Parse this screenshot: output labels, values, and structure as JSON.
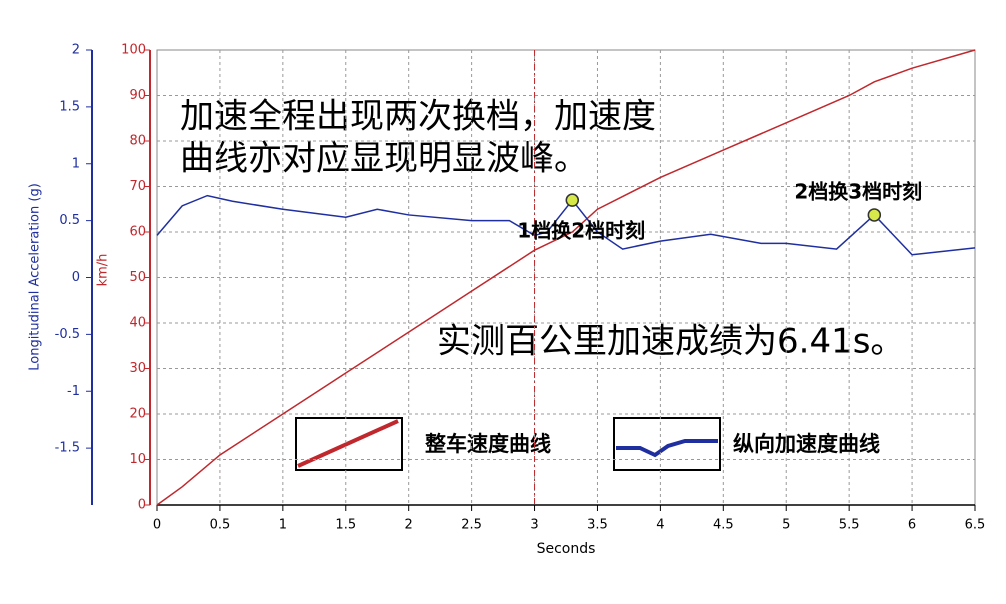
{
  "chart_data": {
    "type": "line",
    "notes": [
      "加速全程出现两次换档，加速度",
      "曲线亦对应显现明显波峰。"
    ],
    "result_note": "实测百公里加速成绩为6.41s。",
    "xlabel": "Seconds",
    "ylabel": "Longitudinal Acceleration (g)",
    "y2label": "km/h",
    "xlim": [
      0,
      6.5
    ],
    "xticks": [
      0,
      0.5,
      1,
      1.5,
      2,
      2.5,
      3,
      3.5,
      4,
      4.5,
      5,
      5.5,
      6,
      6.5
    ],
    "ylim": [
      -2,
      2
    ],
    "yticks": [
      -1.5,
      -1,
      -0.5,
      0,
      0.5,
      1,
      1.5,
      2
    ],
    "y2lim": [
      0,
      100
    ],
    "y2ticks": [
      0,
      10,
      20,
      30,
      40,
      50,
      60,
      70,
      80,
      90,
      100
    ],
    "grid": true,
    "vline": 3,
    "series": [
      {
        "name": "整车速度曲线",
        "color": "#c0282d",
        "axis": "y2",
        "x": [
          0,
          0.2,
          0.5,
          1,
          1.5,
          2,
          2.5,
          3,
          3.3,
          3.5,
          4,
          4.5,
          5,
          5.5,
          5.7,
          6,
          6.5
        ],
        "values": [
          0,
          4,
          11,
          20,
          29,
          38,
          47,
          56,
          60,
          65,
          72,
          78,
          84,
          90,
          93,
          96,
          100
        ]
      },
      {
        "name": "纵向加速度曲线",
        "color": "#1f2fa0",
        "x": [
          0,
          0.2,
          0.4,
          0.6,
          1,
          1.5,
          1.75,
          2,
          2.5,
          2.8,
          3,
          3.1,
          3.3,
          3.5,
          3.7,
          4,
          4.4,
          4.8,
          5,
          5.4,
          5.7,
          6,
          6.5
        ],
        "values": [
          0.37,
          0.63,
          0.72,
          0.67,
          0.6,
          0.53,
          0.6,
          0.55,
          0.5,
          0.5,
          0.37,
          0.4,
          0.68,
          0.4,
          0.25,
          0.32,
          0.38,
          0.3,
          0.3,
          0.25,
          0.55,
          0.2,
          0.26
        ]
      }
    ],
    "markers": [
      {
        "x": 3.3,
        "y": 0.68,
        "label": "1档换2档时刻"
      },
      {
        "x": 5.7,
        "y": 0.55,
        "label": "2档换3档时刻"
      }
    ]
  }
}
